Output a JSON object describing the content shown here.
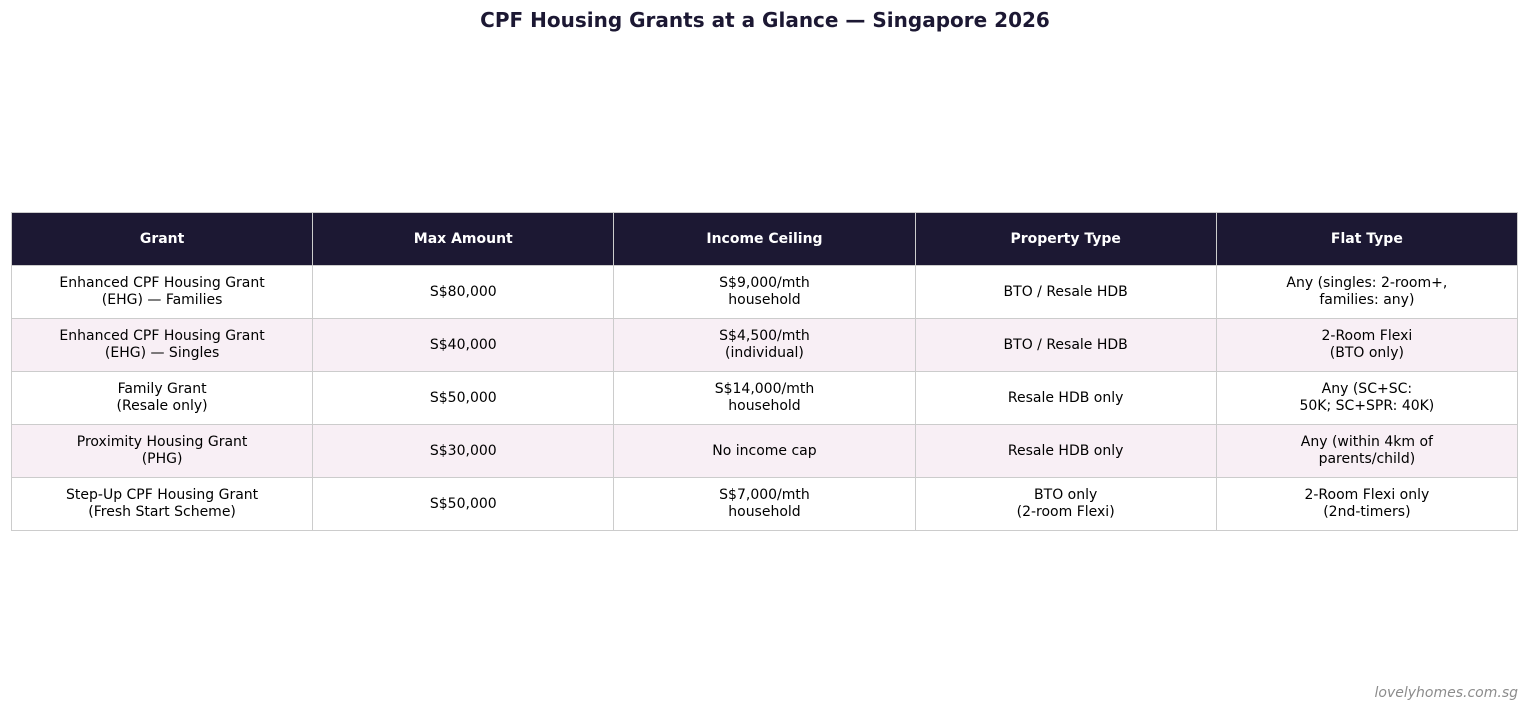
{
  "chart_data": {
    "type": "table",
    "title": "CPF Housing Grants at a Glance — Singapore 2026",
    "columns": [
      "Grant",
      "Max Amount",
      "Income Ceiling",
      "Property Type",
      "Flat Type"
    ],
    "rows": [
      [
        "Enhanced CPF Housing Grant\n(EHG) — Families",
        "S$80,000",
        "S$9,000/mth\nhousehold",
        "BTO / Resale HDB",
        "Any (singles: 2-room+,\nfamilies: any)"
      ],
      [
        "Enhanced CPF Housing Grant\n(EHG) — Singles",
        "S$40,000",
        "S$4,500/mth\n(individual)",
        "BTO / Resale HDB",
        "2-Room Flexi\n(BTO only)"
      ],
      [
        "Family Grant\n(Resale only)",
        "S$50,000",
        "S$14,000/mth\nhousehold",
        "Resale HDB only",
        "Any (SC+SC:\n50K; SC+SPR: 40K)"
      ],
      [
        "Proximity Housing Grant\n(PHG)",
        "S$30,000",
        "No income cap",
        "Resale HDB only",
        "Any (within 4km of\nparents/child)"
      ],
      [
        "Step-Up CPF Housing Grant\n(Fresh Start Scheme)",
        "S$50,000",
        "S$7,000/mth\nhousehold",
        "BTO only\n(2-room Flexi)",
        "2-Room Flexi only\n(2nd-timers)"
      ]
    ],
    "colors": {
      "header_bg": "#1c1833",
      "header_text": "#ffffff",
      "row_alt_bg": "#f8eff5",
      "row_bg": "#ffffff",
      "border": "#cccccc"
    }
  },
  "watermark": "lovelyhomes.com.sg"
}
